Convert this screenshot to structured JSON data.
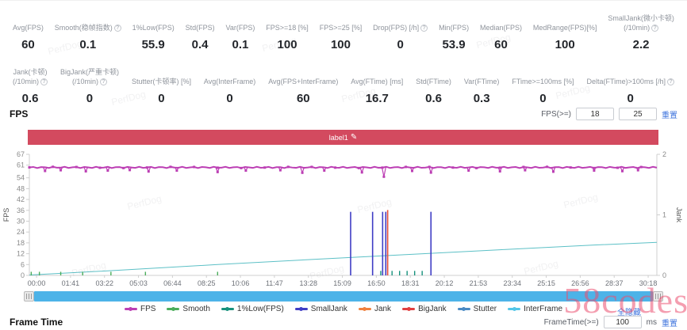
{
  "stats_row1": [
    {
      "label": "Avg(FPS)",
      "value": "60"
    },
    {
      "label": "Smooth(稳帧指数)",
      "value": "0.1",
      "help": true
    },
    {
      "label": "1%Low(FPS)",
      "value": "55.9"
    },
    {
      "label": "Std(FPS)",
      "value": "0.4"
    },
    {
      "label": "Var(FPS)",
      "value": "0.1"
    },
    {
      "label": "FPS>=18 [%]",
      "value": "100"
    },
    {
      "label": "FPS>=25 [%]",
      "value": "100"
    },
    {
      "label": "Drop(FPS) [/h]",
      "value": "0",
      "help": true
    },
    {
      "label": "Min(FPS)",
      "value": "53.9"
    },
    {
      "label": "Median(FPS)",
      "value": "60"
    },
    {
      "label": "MedRange(FPS)[%]",
      "value": "100"
    },
    {
      "label": "SmallJank(微小卡顿)",
      "label2": "(/10min)",
      "value": "2.2",
      "help": true
    }
  ],
  "stats_row2": [
    {
      "label": "Jank(卡顿)",
      "label2": "(/10min)",
      "value": "0.6",
      "help": true
    },
    {
      "label": "BigJank(严重卡顿)",
      "label2": "(/10min)",
      "value": "0",
      "help": true
    },
    {
      "label": "Stutter(卡顿率) [%]",
      "value": "0"
    },
    {
      "label": "Avg(InterFrame)",
      "value": "0"
    },
    {
      "label": "Avg(FPS+InterFrame)",
      "value": "60"
    },
    {
      "label": "Avg(FTime) [ms]",
      "value": "16.7"
    },
    {
      "label": "Std(FTime)",
      "value": "0.6"
    },
    {
      "label": "Var(FTime)",
      "value": "0.3"
    },
    {
      "label": "FTime>=100ms [%]",
      "value": "0"
    },
    {
      "label": "Delta(FTime)>100ms [/h]",
      "value": "0",
      "help": true
    }
  ],
  "fps_section": {
    "title": "FPS",
    "filter_label": "FPS(>=)",
    "input1": "18",
    "input2": "25",
    "reset_label": "重置",
    "chart_label": "label1"
  },
  "frametime_section": {
    "title": "Frame Time",
    "filter_label": "FrameTime(>=)",
    "input1": "100",
    "unit": "ms",
    "reset_label": "重置"
  },
  "hide_all_label": "全隐藏",
  "watermarks": {
    "brand": "PerfDog",
    "site": "58codes"
  },
  "legend": [
    {
      "name": "FPS",
      "color": "#bc3fb4"
    },
    {
      "name": "Smooth",
      "color": "#4bad5b"
    },
    {
      "name": "1%Low(FPS)",
      "color": "#17927d"
    },
    {
      "name": "SmallJank",
      "color": "#3f3dc5"
    },
    {
      "name": "Jank",
      "color": "#f0813f"
    },
    {
      "name": "BigJank",
      "color": "#e23f3f"
    },
    {
      "name": "Stutter",
      "color": "#4a8ac4"
    },
    {
      "name": "InterFrame",
      "color": "#53c6e8"
    }
  ],
  "chart_data": {
    "type": "line",
    "title": "FPS",
    "x_ticks": [
      "00:00",
      "01:41",
      "03:22",
      "05:03",
      "06:44",
      "08:25",
      "10:06",
      "11:47",
      "13:28",
      "15:09",
      "16:50",
      "18:31",
      "20:12",
      "21:53",
      "23:34",
      "25:15",
      "26:56",
      "28:37",
      "30:18"
    ],
    "y_left": {
      "label": "FPS",
      "ticks": [
        0,
        6,
        12,
        18,
        24,
        30,
        36,
        42,
        48,
        54,
        61,
        67
      ],
      "max": 67
    },
    "y_right": {
      "label": "Jank",
      "ticks": [
        0,
        1,
        2
      ],
      "max": 2
    },
    "grid": false,
    "legend_position": "bottom",
    "series": [
      {
        "name": "FPS",
        "color": "#bc3fb4",
        "axis": "left",
        "style": "line-with-markers",
        "base": 60,
        "dips": [
          [
            0.025,
            57.8
          ],
          [
            0.05,
            58.2
          ],
          [
            0.09,
            57.6
          ],
          [
            0.125,
            58.0
          ],
          [
            0.16,
            58.3
          ],
          [
            0.19,
            57.5
          ],
          [
            0.235,
            58.0
          ],
          [
            0.3,
            57.2
          ],
          [
            0.345,
            58.0
          ],
          [
            0.4,
            58.2
          ],
          [
            0.435,
            56.8
          ],
          [
            0.47,
            58.0
          ],
          [
            0.53,
            57.0
          ],
          [
            0.565,
            54.6
          ],
          [
            0.61,
            57.8
          ],
          [
            0.64,
            56.9
          ],
          [
            0.7,
            58.0
          ],
          [
            0.75,
            57.6
          ],
          [
            0.79,
            58.2
          ],
          [
            0.835,
            57.4
          ],
          [
            0.9,
            58.0
          ],
          [
            0.945,
            57.7
          ],
          [
            0.97,
            58.2
          ]
        ]
      },
      {
        "name": "InterFrame",
        "color": "#5cc0c6",
        "axis": "left",
        "style": "line",
        "points": [
          [
            0,
            0.2
          ],
          [
            0.15,
            3.0
          ],
          [
            0.3,
            6.0
          ],
          [
            0.45,
            8.8
          ],
          [
            0.6,
            11.5
          ],
          [
            0.75,
            14.2
          ],
          [
            0.9,
            16.8
          ],
          [
            1,
            18.3
          ]
        ]
      },
      {
        "name": "SmallJank",
        "color": "#3f3dc5",
        "axis": "right",
        "style": "event-spikes",
        "value": 1.05,
        "x": [
          0.512,
          0.547,
          0.563,
          0.568,
          0.64
        ]
      },
      {
        "name": "Jank",
        "color": "#e8503c",
        "axis": "right",
        "style": "event-spikes",
        "value": 1.08,
        "x": [
          0.571
        ]
      },
      {
        "name": "Smooth",
        "color": "#4bad5b",
        "axis": "left",
        "style": "baseline-ticks",
        "value": 2,
        "x": [
          0.003,
          0.016,
          0.05,
          0.085,
          0.13,
          0.185,
          0.3
        ]
      },
      {
        "name": "1%Low(FPS)",
        "color": "#17927d",
        "axis": "left",
        "style": "baseline-ticks",
        "value": 2.5,
        "x": [
          0.56,
          0.578,
          0.59,
          0.602,
          0.614,
          0.626
        ]
      },
      {
        "name": "BigJank",
        "color": "#e23f3f",
        "axis": "right",
        "style": "event-spikes",
        "value": 0,
        "x": []
      },
      {
        "name": "Stutter",
        "color": "#4a8ac4",
        "axis": "right",
        "style": "event-spikes",
        "value": 0,
        "x": []
      }
    ]
  }
}
